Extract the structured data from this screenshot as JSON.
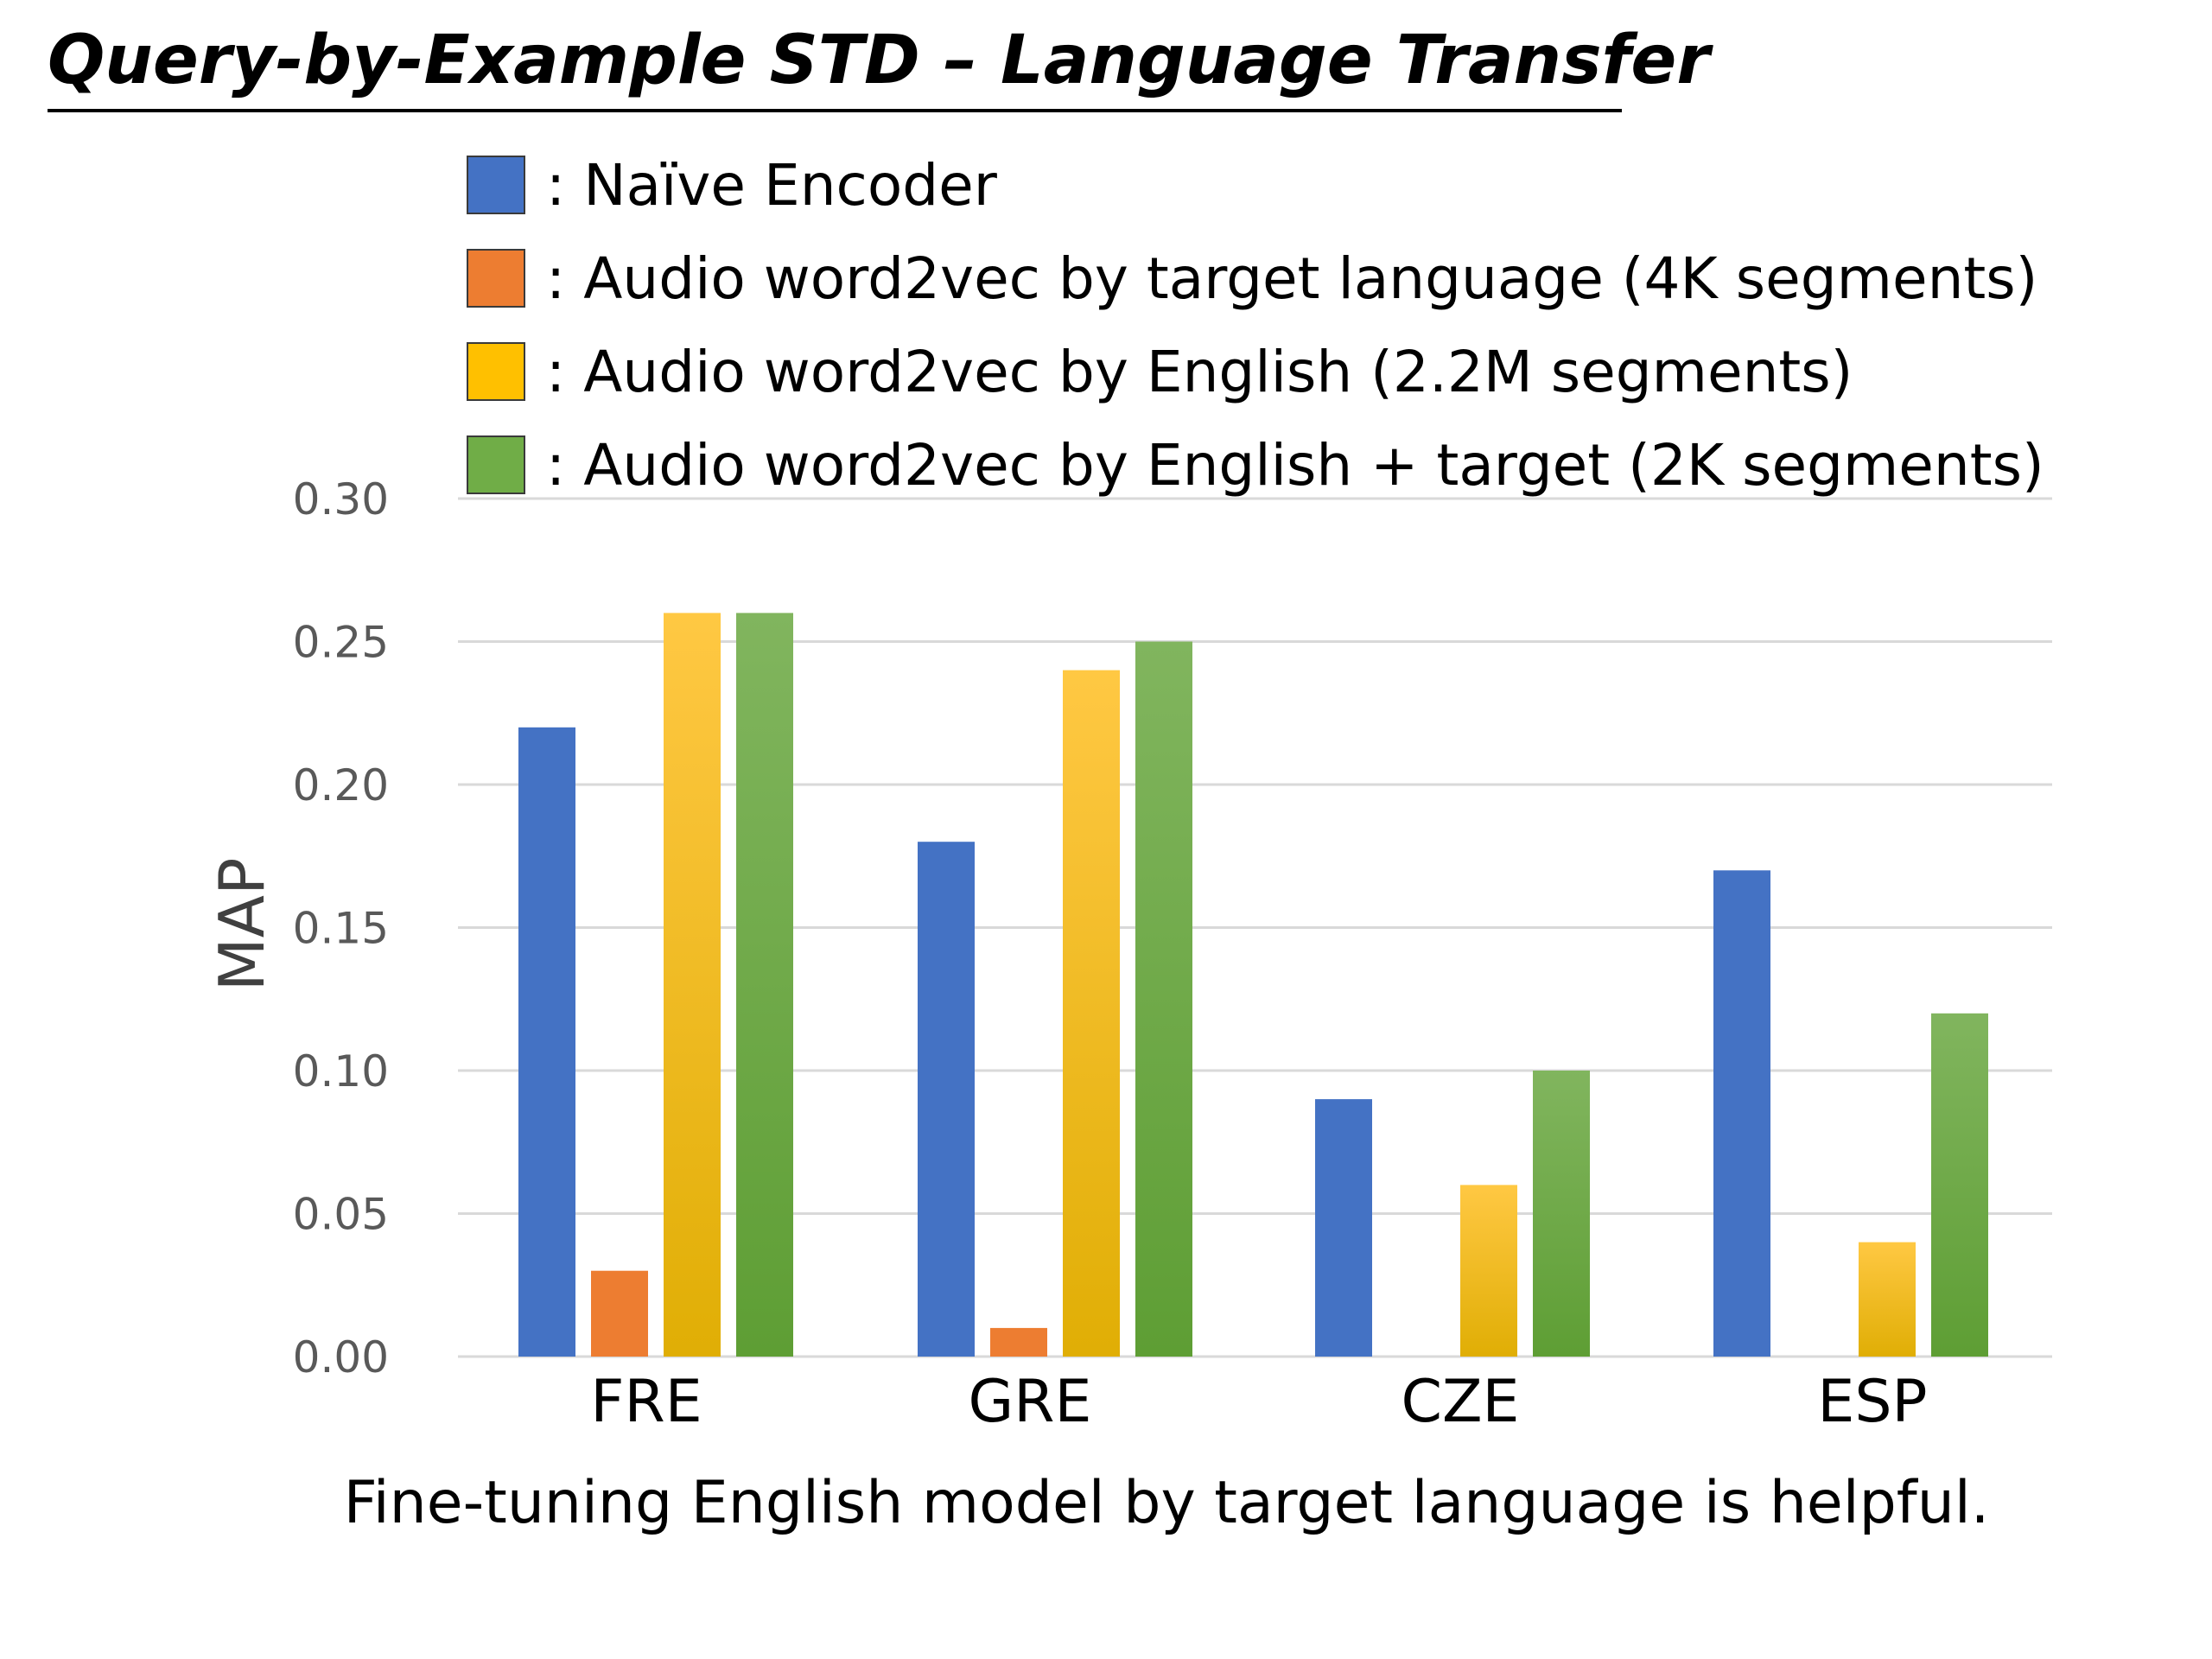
{
  "slide": {
    "title": "Query-by-Example STD – Language Transfer",
    "footnote": "Fine-tuning English model by target language is helpful."
  },
  "chart_data": {
    "type": "bar",
    "title": "",
    "xlabel": "",
    "ylabel": "MAP",
    "ylim": [
      0,
      0.3
    ],
    "yticks": [
      "0.00",
      "0.05",
      "0.10",
      "0.15",
      "0.20",
      "0.25",
      "0.30"
    ],
    "grid": true,
    "legend_position": "top",
    "categories": [
      "FRE",
      "GRE",
      "CZE",
      "ESP"
    ],
    "series": [
      {
        "name": ": Naïve Encoder",
        "color": "#4472C4",
        "values": [
          0.22,
          0.18,
          0.09,
          0.17
        ]
      },
      {
        "name": ": Audio word2vec  by target language (4K segments)",
        "color": "#ED7D31",
        "values": [
          0.03,
          0.01,
          0,
          0
        ]
      },
      {
        "name": ": Audio word2vec  by English (2.2M segments)",
        "color": "#FFC000",
        "values": [
          0.26,
          0.24,
          0.06,
          0.04
        ]
      },
      {
        "name": ": Audio word2vec  by English + target  (2K segments)",
        "color": "#70AD47",
        "values": [
          0.26,
          0.25,
          0.1,
          0.12
        ]
      }
    ]
  }
}
